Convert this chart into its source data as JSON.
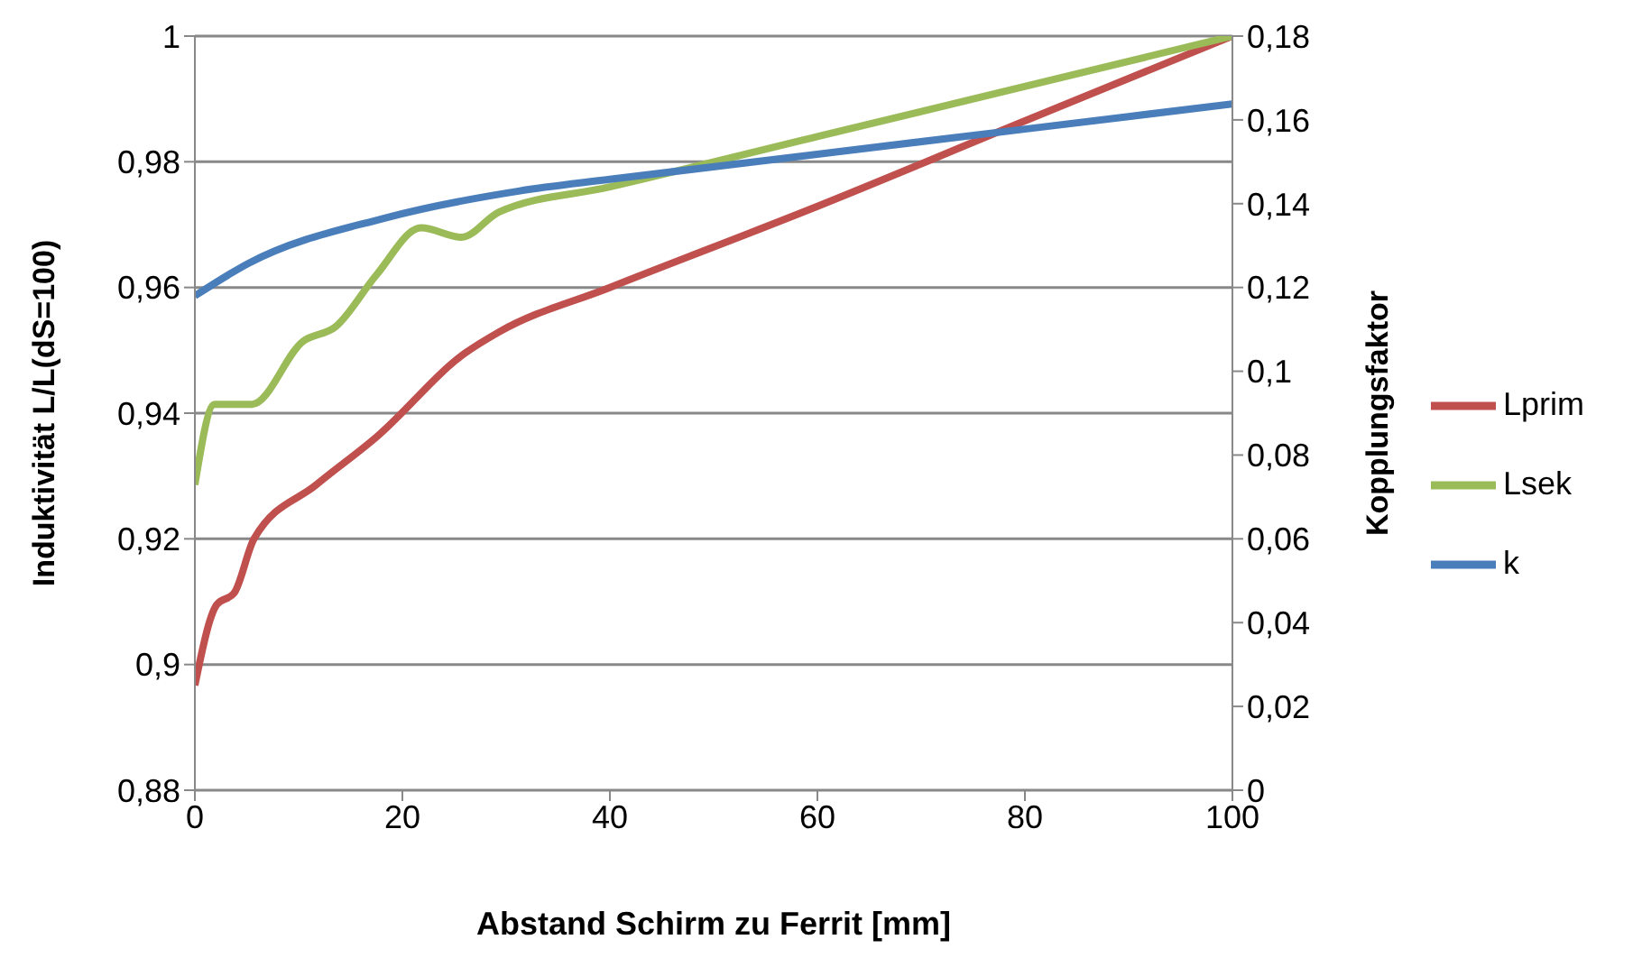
{
  "chart_data": {
    "type": "line",
    "xlabel": "Abstand Schirm zu Ferrit [mm]",
    "ylabel": "Induktivität L/L(dS=100)",
    "y2label": "Kopplungsfaktor",
    "xlim": [
      0,
      100
    ],
    "xticks": [
      0,
      20,
      40,
      60,
      80,
      100
    ],
    "ylim": [
      0.88,
      1
    ],
    "yticks": [
      {
        "value": 0.88,
        "label": "0,88"
      },
      {
        "value": 0.9,
        "label": "0,9"
      },
      {
        "value": 0.92,
        "label": "0,92"
      },
      {
        "value": 0.94,
        "label": "0,94"
      },
      {
        "value": 0.96,
        "label": "0,96"
      },
      {
        "value": 0.98,
        "label": "0,98"
      },
      1
    ],
    "y2lim": [
      0,
      0.18
    ],
    "y2ticks": [
      0,
      {
        "value": 0.02,
        "label": "0,02"
      },
      {
        "value": 0.04,
        "label": "0,04"
      },
      {
        "value": 0.06,
        "label": "0,06"
      },
      {
        "value": 0.08,
        "label": "0,08"
      },
      {
        "value": 0.1,
        "label": "0,1"
      },
      {
        "value": 0.12,
        "label": "0,12"
      },
      {
        "value": 0.14,
        "label": "0,14"
      },
      {
        "value": 0.16,
        "label": "0,16"
      },
      {
        "value": 0.18,
        "label": "0,18"
      }
    ],
    "grid": "y",
    "legend": "right",
    "marker": "none",
    "line_style": "solid",
    "series": [
      {
        "name": "Lprim",
        "color": "#c0504d",
        "x": [
          0,
          2.1,
          3.8,
          5.7,
          11.7,
          17.5,
          26,
          29.3,
          40,
          60,
          80,
          100
        ],
        "values": [
          0.8967,
          0.9095,
          0.9114,
          0.92,
          0.9286,
          0.9362,
          0.9495,
          0.9529,
          0.96,
          0.9729,
          0.9865,
          1
        ]
      },
      {
        "name": "Lsek",
        "color": "#9bbb59",
        "x": [
          0,
          1.9,
          5.5,
          10.4,
          13.6,
          17.5,
          21.8,
          25.7,
          29.3,
          40,
          60,
          100
        ],
        "values": [
          0.9286,
          0.9414,
          0.9414,
          0.9514,
          0.9538,
          0.962,
          0.9695,
          0.968,
          0.972,
          0.976,
          0.984,
          1
        ]
      },
      {
        "name": "k",
        "color": "#4a7ebb",
        "axis": "y2",
        "x": [
          0,
          5.2,
          18.2,
          31.2,
          40,
          60,
          80,
          100
        ],
        "values": [
          0.118,
          0.1258,
          0.1365,
          0.143,
          0.1458,
          0.1518,
          0.1578,
          0.1638
        ]
      }
    ]
  }
}
